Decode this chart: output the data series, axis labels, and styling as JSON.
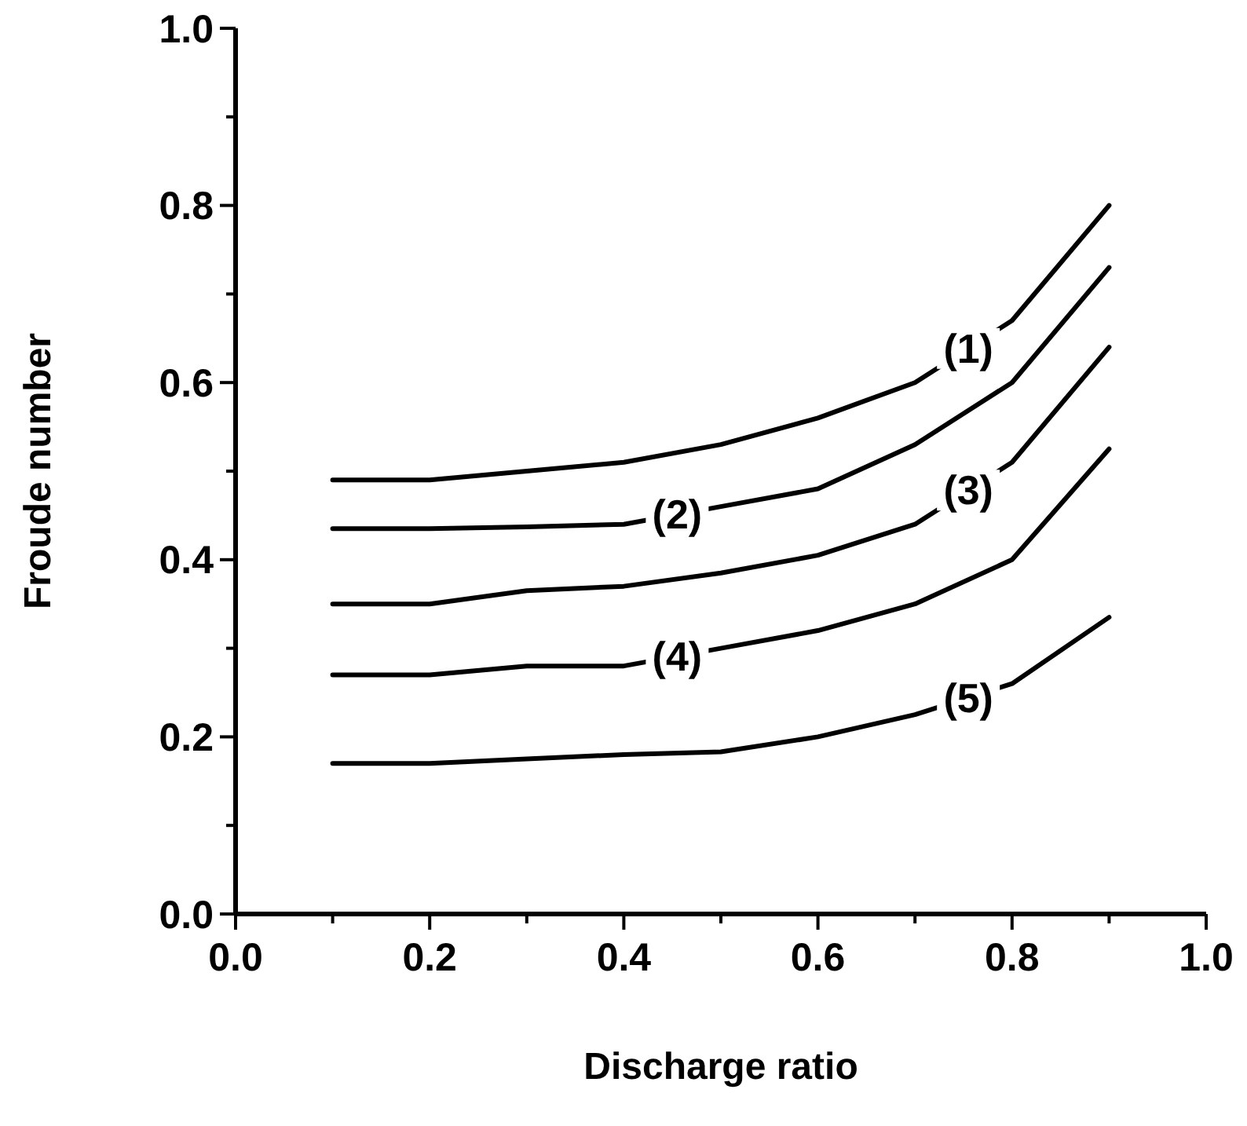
{
  "chart_data": {
    "type": "line",
    "xlabel": "Discharge ratio",
    "ylabel": "Froude number",
    "x": [
      0.1,
      0.2,
      0.3,
      0.4,
      0.5,
      0.6,
      0.7,
      0.8,
      0.9
    ],
    "series": [
      {
        "name": "(1)",
        "color": "#000000",
        "values": [
          0.49,
          0.49,
          0.5,
          0.51,
          0.53,
          0.56,
          0.6,
          0.67,
          0.8
        ]
      },
      {
        "name": "(2)",
        "color": "#000000",
        "values": [
          0.435,
          0.435,
          0.437,
          0.44,
          0.46,
          0.48,
          0.53,
          0.6,
          0.73
        ]
      },
      {
        "name": "(3)",
        "color": "#000000",
        "values": [
          0.35,
          0.35,
          0.365,
          0.37,
          0.385,
          0.405,
          0.44,
          0.51,
          0.64
        ]
      },
      {
        "name": "(4)",
        "color": "#000000",
        "values": [
          0.27,
          0.27,
          0.28,
          0.28,
          0.3,
          0.32,
          0.35,
          0.4,
          0.525
        ]
      },
      {
        "name": "(5)",
        "color": "#000000",
        "values": [
          0.17,
          0.17,
          0.175,
          0.18,
          0.183,
          0.2,
          0.225,
          0.26,
          0.335
        ]
      }
    ],
    "xlim": [
      0,
      1
    ],
    "ylim": [
      0,
      1
    ],
    "xticks": [
      {
        "value": 0,
        "label": "0.0"
      },
      {
        "value": 0.1,
        "label": null
      },
      {
        "value": 0.2,
        "label": "0.2"
      },
      {
        "value": 0.3,
        "label": null
      },
      {
        "value": 0.4,
        "label": "0.4"
      },
      {
        "value": 0.5,
        "label": null
      },
      {
        "value": 0.6,
        "label": "0.6"
      },
      {
        "value": 0.7,
        "label": null
      },
      {
        "value": 0.8,
        "label": "0.8"
      },
      {
        "value": 0.9,
        "label": null
      },
      {
        "value": 1,
        "label": "1.0"
      }
    ],
    "yticks": [
      {
        "value": 0,
        "label": "0.0"
      },
      {
        "value": 0.1,
        "label": null
      },
      {
        "value": 0.2,
        "label": "0.2"
      },
      {
        "value": 0.3,
        "label": null
      },
      {
        "value": 0.4,
        "label": "0.4"
      },
      {
        "value": 0.5,
        "label": null
      },
      {
        "value": 0.6,
        "label": "0.6"
      },
      {
        "value": 0.7,
        "label": null
      },
      {
        "value": 0.8,
        "label": "0.8"
      },
      {
        "value": 0.9,
        "label": null
      },
      {
        "value": 1,
        "label": "1.0"
      }
    ],
    "grid": false,
    "marker": "none",
    "line_style": "solid"
  }
}
